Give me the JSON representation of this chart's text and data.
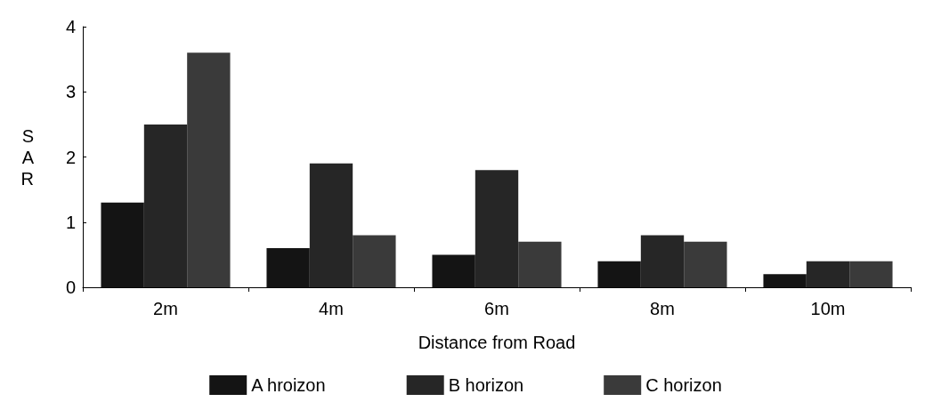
{
  "chart_data": {
    "type": "bar",
    "xlabel": "Distance from Road",
    "ylabel": "SAR",
    "categories": [
      "2m",
      "4m",
      "6m",
      "8m",
      "10m"
    ],
    "series": [
      {
        "name": "A hroizon",
        "color": "#141414",
        "values": [
          1.3,
          0.6,
          0.5,
          0.4,
          0.2
        ]
      },
      {
        "name": "B horizon",
        "color": "#262626",
        "values": [
          2.5,
          1.9,
          1.8,
          0.8,
          0.4
        ]
      },
      {
        "name": "C horizon",
        "color": "#3a3a3a",
        "values": [
          3.6,
          0.8,
          0.7,
          0.7,
          0.4
        ]
      }
    ],
    "ylim": [
      0,
      4
    ],
    "yticks": [
      0,
      1,
      2,
      3,
      4
    ],
    "grid": false,
    "legend": "bottom"
  }
}
